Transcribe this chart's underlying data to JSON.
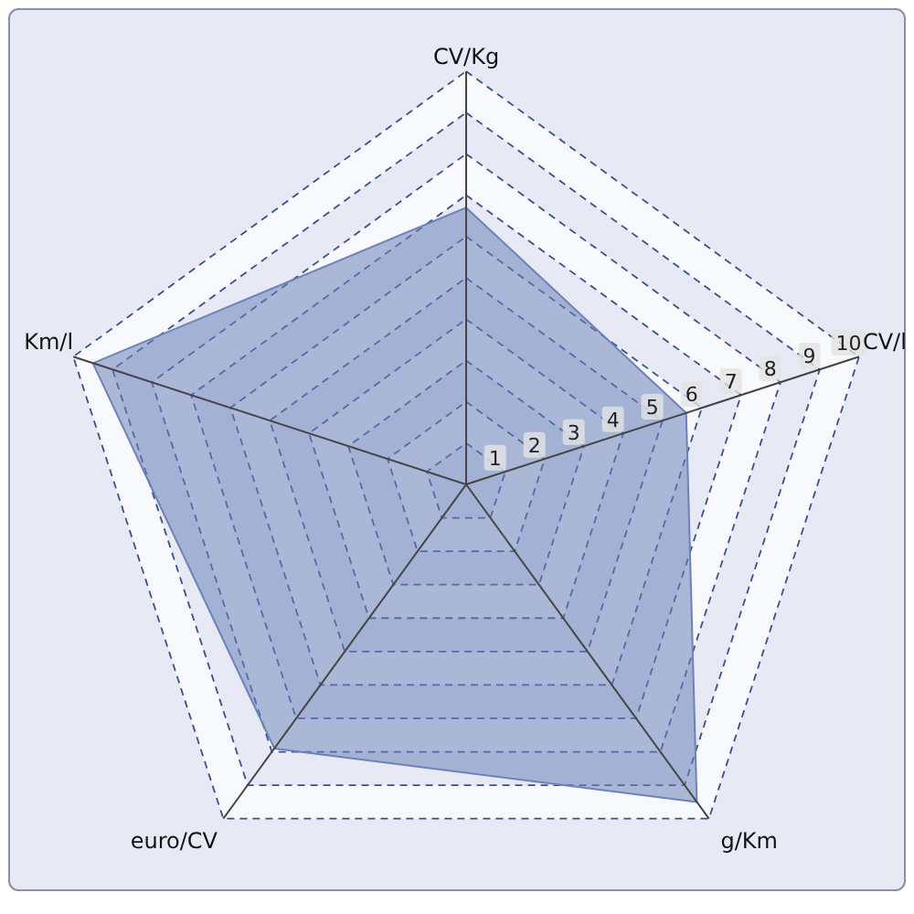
{
  "chart_data": {
    "type": "radar",
    "categories": [
      "CV/Kg",
      "CV/l",
      "g/Km",
      "euro/CV",
      "Km/l"
    ],
    "series": [
      {
        "color": "#6c82b8",
        "values": [
          6.7,
          5.6,
          9.5,
          7.9,
          9.5
        ]
      }
    ],
    "ylim": [
      0,
      10
    ],
    "yticks": [
      1,
      2,
      3,
      4,
      5,
      6,
      7,
      8,
      9,
      10
    ],
    "grid": true
  }
}
